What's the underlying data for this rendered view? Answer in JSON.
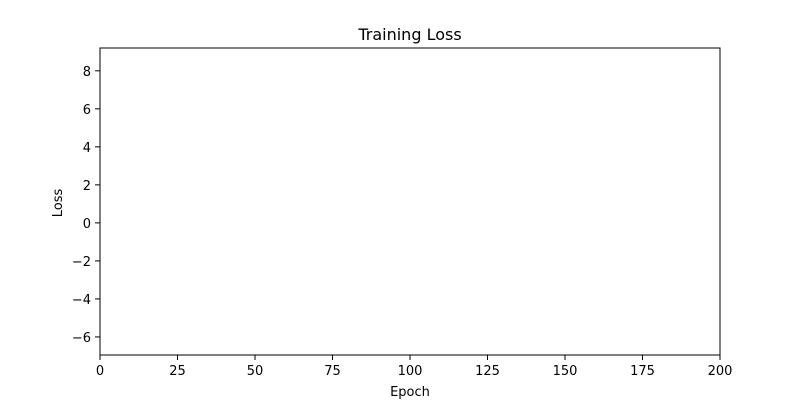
{
  "chart_data": {
    "type": "line",
    "title": "Training Loss",
    "xlabel": "Epoch",
    "ylabel": "Loss",
    "xlim": [
      0,
      200
    ],
    "ylim": [
      -6.95,
      9.2
    ],
    "x_ticks": [
      0,
      25,
      50,
      75,
      100,
      125,
      150,
      175,
      200
    ],
    "y_ticks": [
      -6,
      -4,
      -2,
      0,
      2,
      4,
      6,
      8
    ],
    "grid": false,
    "series": []
  }
}
